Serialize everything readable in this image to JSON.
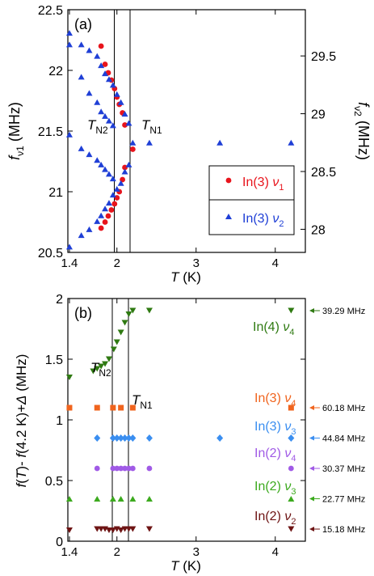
{
  "chart_data": [
    {
      "panel": "(a)",
      "type": "scatter",
      "xlabel": "T (K)",
      "ylabel_left": "f_ν1 (MHz)",
      "ylabel_right": "f_ν2 (MHz)",
      "xlim": [
        1.38,
        4.38
      ],
      "ylim_left": [
        20.5,
        22.5
      ],
      "ylim_right": [
        27.8,
        29.9
      ],
      "x_ticks": [
        "1.4",
        "2",
        "3",
        "4"
      ],
      "y_ticks_left": [
        "20.5",
        "21",
        "21.5",
        "22",
        "22.5"
      ],
      "y_ticks_right": [
        "28",
        "28.5",
        "29",
        "29.5"
      ],
      "vlines": [
        {
          "label": "T_N2",
          "x": 1.98
        },
        {
          "label": "T_N1",
          "x": 2.18
        }
      ],
      "legend": "bottom-right",
      "series": [
        {
          "name": "In(3) ν1",
          "color": "#e8141c",
          "marker": "circle",
          "axis": "left",
          "points": [
            [
              1.8,
              22.2
            ],
            [
              1.85,
              22.05
            ],
            [
              1.89,
              21.98
            ],
            [
              1.93,
              21.92
            ],
            [
              1.97,
              21.85
            ],
            [
              2.0,
              21.78
            ],
            [
              2.03,
              21.72
            ],
            [
              2.07,
              21.65
            ],
            [
              2.1,
              21.55
            ],
            [
              2.2,
              21.35
            ],
            [
              1.8,
              20.7
            ],
            [
              1.85,
              20.75
            ],
            [
              1.89,
              20.8
            ],
            [
              1.93,
              20.85
            ],
            [
              1.97,
              20.9
            ],
            [
              2.0,
              20.95
            ],
            [
              2.03,
              21.0
            ],
            [
              2.07,
              21.1
            ],
            [
              2.1,
              21.2
            ]
          ]
        },
        {
          "name": "In(3) ν2",
          "color": "#1f3fd6",
          "marker": "triangle-up",
          "axis": "right",
          "points": [
            [
              1.4,
              29.7
            ],
            [
              1.55,
              29.6
            ],
            [
              1.65,
              29.55
            ],
            [
              1.75,
              29.5
            ],
            [
              1.8,
              29.42
            ],
            [
              1.85,
              29.35
            ],
            [
              1.9,
              29.3
            ],
            [
              1.95,
              29.25
            ],
            [
              2.0,
              29.17
            ],
            [
              2.05,
              29.1
            ],
            [
              2.1,
              29.0
            ],
            [
              2.15,
              28.92
            ],
            [
              2.2,
              28.75
            ],
            [
              2.41,
              28.75
            ],
            [
              3.3,
              28.75
            ],
            [
              4.2,
              28.75
            ],
            [
              1.4,
              27.85
            ],
            [
              1.55,
              27.95
            ],
            [
              1.65,
              28.0
            ],
            [
              1.75,
              28.07
            ],
            [
              1.8,
              28.12
            ],
            [
              1.85,
              28.18
            ],
            [
              1.9,
              28.23
            ],
            [
              1.95,
              28.3
            ],
            [
              2.0,
              28.35
            ],
            [
              2.05,
              28.4
            ],
            [
              2.1,
              28.5
            ],
            [
              2.15,
              28.56
            ],
            [
              1.4,
              28.82
            ],
            [
              1.55,
              28.7
            ],
            [
              1.65,
              28.65
            ],
            [
              1.75,
              28.6
            ],
            [
              1.8,
              28.56
            ],
            [
              1.85,
              28.52
            ],
            [
              1.9,
              28.48
            ],
            [
              1.95,
              28.44
            ],
            [
              1.4,
              29.6
            ],
            [
              1.55,
              29.32
            ],
            [
              1.65,
              29.18
            ],
            [
              1.75,
              29.1
            ],
            [
              1.8,
              29.02
            ],
            [
              1.85,
              28.98
            ],
            [
              1.9,
              28.94
            ],
            [
              1.95,
              28.9
            ]
          ]
        }
      ]
    },
    {
      "panel": "(b)",
      "type": "scatter",
      "xlabel": "T (K)",
      "ylabel": "f(T) - f(4.2 K)+Δ (MHz)",
      "xlim": [
        1.38,
        4.38
      ],
      "ylim": [
        0,
        2
      ],
      "x_ticks": [
        "1.4",
        "2",
        "3",
        "4"
      ],
      "y_ticks": [
        "0",
        "0.5",
        "1",
        "1.5",
        "2"
      ],
      "vlines": [
        {
          "label": "T_N2",
          "x": 1.98
        },
        {
          "label": "T_N1",
          "x": 2.18
        }
      ],
      "series": [
        {
          "name": "In(4) ν4",
          "color": "#2f7a12",
          "marker": "triangle-down",
          "freq_label": "39.29 MHz",
          "points": [
            [
              1.4,
              1.35
            ],
            [
              1.7,
              1.4
            ],
            [
              1.75,
              1.42
            ],
            [
              1.8,
              1.44
            ],
            [
              1.85,
              1.46
            ],
            [
              1.9,
              1.5
            ],
            [
              1.96,
              1.58
            ],
            [
              2.0,
              1.64
            ],
            [
              2.05,
              1.72
            ],
            [
              2.1,
              1.8
            ],
            [
              2.15,
              1.87
            ],
            [
              2.2,
              1.9
            ],
            [
              2.41,
              1.9
            ],
            [
              4.2,
              1.9
            ]
          ]
        },
        {
          "name": "In(3) ν4",
          "color": "#f0641e",
          "marker": "square",
          "freq_label": "60.18 MHz",
          "points": [
            [
              1.4,
              1.1
            ],
            [
              1.75,
              1.1
            ],
            [
              1.95,
              1.1
            ],
            [
              2.05,
              1.1
            ],
            [
              2.2,
              1.1
            ],
            [
              4.2,
              1.1
            ]
          ]
        },
        {
          "name": "In(3) ν3",
          "color": "#3a8ef0",
          "marker": "diamond",
          "freq_label": "44.84 MHz",
          "points": [
            [
              1.75,
              0.85
            ],
            [
              1.95,
              0.85
            ],
            [
              2.0,
              0.85
            ],
            [
              2.05,
              0.85
            ],
            [
              2.1,
              0.85
            ],
            [
              2.15,
              0.85
            ],
            [
              2.2,
              0.85
            ],
            [
              2.41,
              0.85
            ],
            [
              3.3,
              0.85
            ],
            [
              4.2,
              0.85
            ]
          ]
        },
        {
          "name": "In(2) ν4",
          "color": "#a05ae6",
          "marker": "circle",
          "freq_label": "30.37 MHz",
          "points": [
            [
              1.75,
              0.6
            ],
            [
              1.95,
              0.6
            ],
            [
              2.0,
              0.6
            ],
            [
              2.05,
              0.6
            ],
            [
              2.1,
              0.6
            ],
            [
              2.15,
              0.6
            ],
            [
              2.2,
              0.6
            ],
            [
              2.41,
              0.6
            ],
            [
              4.2,
              0.6
            ]
          ]
        },
        {
          "name": "In(2) ν3",
          "color": "#3caa1e",
          "marker": "triangle-up",
          "freq_label": "22.77 MHz",
          "points": [
            [
              1.4,
              0.35
            ],
            [
              1.75,
              0.35
            ],
            [
              1.95,
              0.35
            ],
            [
              2.05,
              0.35
            ],
            [
              2.2,
              0.35
            ],
            [
              2.41,
              0.35
            ],
            [
              4.2,
              0.35
            ]
          ]
        },
        {
          "name": "In(2) ν2",
          "color": "#6e1414",
          "marker": "triangle-down",
          "freq_label": "15.18 MHz",
          "points": [
            [
              1.4,
              0.09
            ],
            [
              1.75,
              0.1
            ],
            [
              1.8,
              0.1
            ],
            [
              1.85,
              0.1
            ],
            [
              1.9,
              0.09
            ],
            [
              1.95,
              0.09
            ],
            [
              2.0,
              0.1
            ],
            [
              2.05,
              0.09
            ],
            [
              2.1,
              0.1
            ],
            [
              2.15,
              0.1
            ],
            [
              2.2,
              0.1
            ],
            [
              2.41,
              0.1
            ],
            [
              4.2,
              0.1
            ]
          ]
        }
      ]
    }
  ],
  "text": {
    "panel_a": "(a)",
    "panel_b": "(b)",
    "t_n2_main": "T",
    "t_n2_sub": "N2",
    "t_n1_main": "T",
    "t_n1_sub": "N1",
    "x_label_main": "T",
    "x_label_unit": " (K)",
    "legend_a1": "In(3) ",
    "legend_a1_nu": "ν",
    "legend_a1_sub": "1",
    "legend_a2": "In(3) ",
    "legend_a2_nu": "ν",
    "legend_a2_sub": "2",
    "ylabel_a_left_f": "f",
    "ylabel_a_left_sub": "ν1",
    "ylabel_a_left_unit": " (MHz)",
    "ylabel_a_right_f": "f",
    "ylabel_a_right_sub": "ν2",
    "ylabel_a_right_unit": " (MHz)",
    "ylabel_b_f1": "f",
    "ylabel_b_mid1": "(",
    "ylabel_b_T": "T",
    "ylabel_b_mid2": ")- ",
    "ylabel_b_f2": "f",
    "ylabel_b_mid3": "(4.2 K)+",
    "ylabel_b_delta": "Δ",
    "ylabel_b_unit": " (MHz)",
    "in4_nu4": "In(4) ",
    "in3_nu4": "In(3) ",
    "in3_nu3": "In(3) ",
    "in2_nu4": "In(2) ",
    "in2_nu3": "In(2) ",
    "in2_nu2": "In(2) ",
    "nu": "ν",
    "sub4": "4",
    "sub3": "3",
    "sub2": "2"
  }
}
